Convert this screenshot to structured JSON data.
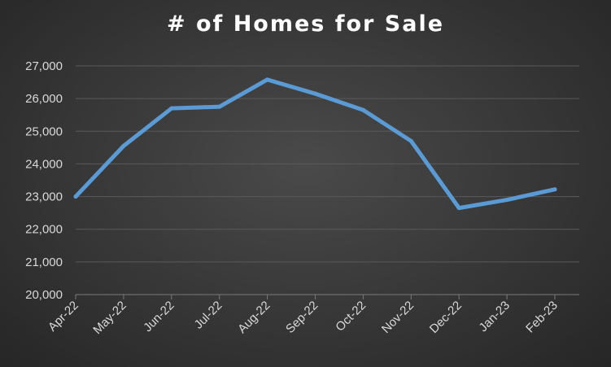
{
  "chart_data": {
    "type": "line",
    "title": "# of Homes for Sale",
    "categories": [
      "Apr-22",
      "May-22",
      "Jun-22",
      "Jul-22",
      "Aug-22",
      "Sep-22",
      "Oct-22",
      "Nov-22",
      "Dec-22",
      "Jan-23",
      "Feb-23"
    ],
    "series": [
      {
        "values": [
          23000,
          24550,
          25700,
          25750,
          26580,
          26150,
          25650,
          24700,
          22650,
          22900,
          23220
        ]
      }
    ],
    "yticks": [
      "20,000",
      "21,000",
      "22,000",
      "23,000",
      "24,000",
      "25,000",
      "26,000",
      "27,000"
    ],
    "ylim": [
      20000,
      27000
    ],
    "grid": true,
    "line_color": "#5b9bd5",
    "background_color": "#3c3c3c"
  }
}
